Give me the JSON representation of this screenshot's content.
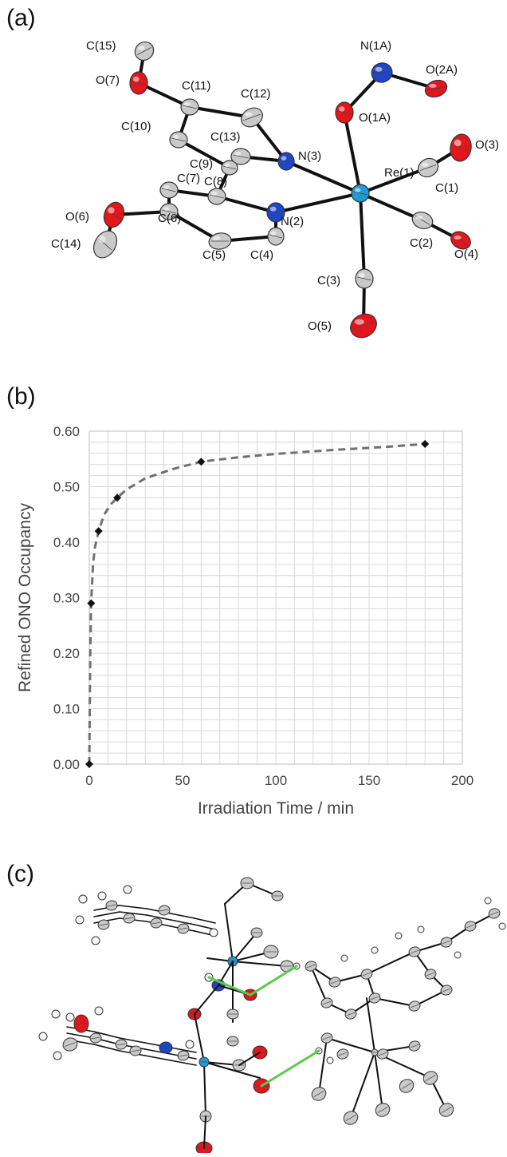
{
  "panels": {
    "a": {
      "label": "(a)",
      "atoms": [
        {
          "id": "C15",
          "label": "C(15)",
          "element": "C"
        },
        {
          "id": "O7",
          "label": "O(7)",
          "element": "O"
        },
        {
          "id": "C11",
          "label": "C(11)",
          "element": "C"
        },
        {
          "id": "C12",
          "label": "C(12)",
          "element": "C"
        },
        {
          "id": "C10",
          "label": "C(10)",
          "element": "C"
        },
        {
          "id": "C13",
          "label": "C(13)",
          "element": "C"
        },
        {
          "id": "C9",
          "label": "C(9)",
          "element": "C"
        },
        {
          "id": "C8",
          "label": "C(8)",
          "element": "C"
        },
        {
          "id": "C7",
          "label": "C(7)",
          "element": "C"
        },
        {
          "id": "C6",
          "label": "C(6)",
          "element": "C"
        },
        {
          "id": "O6",
          "label": "O(6)",
          "element": "O"
        },
        {
          "id": "C14",
          "label": "C(14)",
          "element": "C"
        },
        {
          "id": "C5",
          "label": "C(5)",
          "element": "C"
        },
        {
          "id": "C4",
          "label": "C(4)",
          "element": "C"
        },
        {
          "id": "N2",
          "label": "N(2)",
          "element": "N"
        },
        {
          "id": "N3",
          "label": "N(3)",
          "element": "N"
        },
        {
          "id": "N1A",
          "label": "N(1A)",
          "element": "N"
        },
        {
          "id": "O2A",
          "label": "O(2A)",
          "element": "O"
        },
        {
          "id": "O1A",
          "label": "O(1A)",
          "element": "O"
        },
        {
          "id": "Re1",
          "label": "Re(1)",
          "element": "Re"
        },
        {
          "id": "C1",
          "label": "C(1)",
          "element": "C"
        },
        {
          "id": "O3",
          "label": "O(3)",
          "element": "O"
        },
        {
          "id": "C2",
          "label": "C(2)",
          "element": "C"
        },
        {
          "id": "O4",
          "label": "O(4)",
          "element": "O"
        },
        {
          "id": "C3",
          "label": "C(3)",
          "element": "C"
        },
        {
          "id": "O5",
          "label": "O(5)",
          "element": "O"
        }
      ]
    },
    "b": {
      "label": "(b)"
    },
    "c": {
      "label": "(c)"
    }
  },
  "colors": {
    "C": "#c9c9c9",
    "O": "#e3161c",
    "N": "#1f45c8",
    "Re": "#1e9ad6",
    "H": "#f5f5f5",
    "bond": "#111111",
    "hbond": "#5cc84a",
    "fit": "#707070",
    "grid": "#d9d9d9"
  },
  "chart_data": {
    "type": "scatter",
    "xlabel": "Irradiation Time / min",
    "ylabel": "Refined ONO Occupancy",
    "xlim": [
      0,
      200
    ],
    "ylim": [
      0.0,
      0.6
    ],
    "x_ticks": [
      "0",
      "50",
      "100",
      "150",
      "200"
    ],
    "y_ticks": [
      "0.00",
      "0.10",
      "0.20",
      "0.30",
      "0.40",
      "0.50",
      "0.60"
    ],
    "grid": true,
    "series": [
      {
        "marker": "diamond",
        "points": [
          [
            0,
            0.0
          ],
          [
            1,
            0.29
          ],
          [
            5,
            0.42
          ],
          [
            15,
            0.48
          ],
          [
            60,
            0.545
          ],
          [
            180,
            0.577
          ]
        ]
      }
    ],
    "fit_curve": {
      "style": "dashed",
      "points": [
        [
          0,
          0.0
        ],
        [
          0.5,
          0.2
        ],
        [
          1,
          0.29
        ],
        [
          2,
          0.36
        ],
        [
          3,
          0.39
        ],
        [
          5,
          0.42
        ],
        [
          8,
          0.45
        ],
        [
          12,
          0.47
        ],
        [
          15,
          0.48
        ],
        [
          20,
          0.495
        ],
        [
          30,
          0.515
        ],
        [
          45,
          0.532
        ],
        [
          60,
          0.545
        ],
        [
          80,
          0.553
        ],
        [
          100,
          0.559
        ],
        [
          130,
          0.566
        ],
        [
          160,
          0.572
        ],
        [
          180,
          0.577
        ]
      ]
    }
  }
}
